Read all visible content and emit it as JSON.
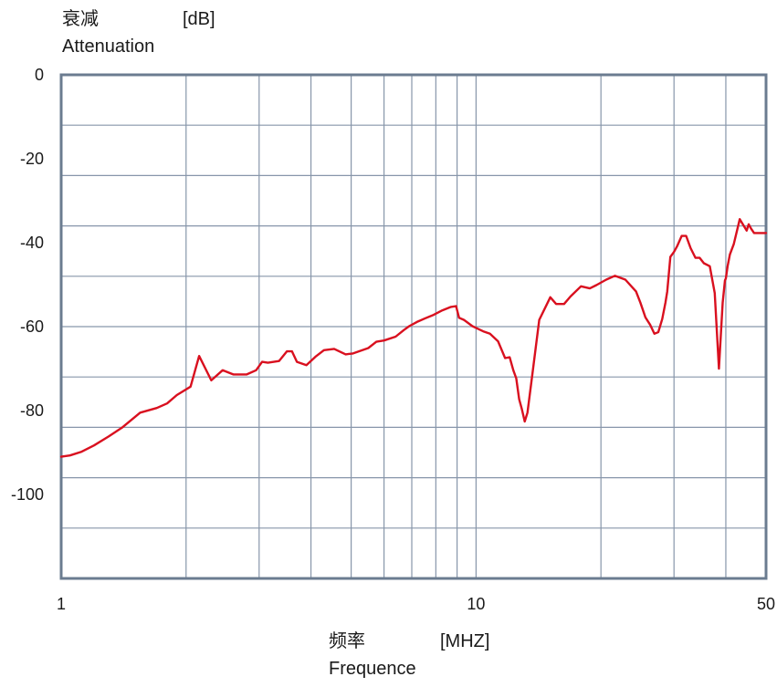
{
  "chart_data": {
    "type": "line",
    "title": "",
    "ylabel_cn": "衰减",
    "ylabel_unit": "[dB]",
    "ylabel": "Attenuation",
    "xlabel_cn": "频率",
    "xlabel_unit": "[MHZ]",
    "xlabel": "Frequence",
    "x_scale": "log",
    "xlim": [
      1,
      50
    ],
    "ylim": [
      -120,
      0
    ],
    "x_ticks": [
      1,
      10,
      50
    ],
    "x_tick_labels": [
      "1",
      "10",
      "50"
    ],
    "y_ticks": [
      0,
      -20,
      -40,
      -60,
      -80,
      -100
    ],
    "y_tick_labels": [
      "0",
      "-20",
      "-40",
      "-60",
      "-80",
      "-100"
    ],
    "grid": true,
    "x_grid": [
      2,
      3,
      4,
      5,
      6,
      7,
      8,
      9,
      10,
      20,
      30,
      40
    ],
    "y_grid": [
      -12,
      -24,
      -36,
      -48,
      -60,
      -72,
      -84,
      -96,
      -108
    ],
    "colors": {
      "line": "#d9101f",
      "axis": "#6b7c90",
      "grid": "#8796aa"
    },
    "series": [
      {
        "x": [
          1.0,
          1.05,
          1.12,
          1.2,
          1.3,
          1.4,
          1.55,
          1.7,
          1.8,
          1.9,
          2.05,
          2.15,
          2.3,
          2.45,
          2.6,
          2.8,
          2.95,
          3.05,
          3.15,
          3.35,
          3.5,
          3.6,
          3.7,
          3.9,
          4.1,
          4.3,
          4.55,
          4.85,
          5.05,
          5.5,
          5.75,
          6.0,
          6.4,
          6.7,
          6.9,
          7.2,
          7.55,
          7.9,
          8.3,
          8.7,
          8.95,
          9.1,
          9.35,
          9.8,
          10.0,
          10.4,
          10.8,
          11.3,
          11.75,
          12.05,
          12.3,
          12.5,
          12.7,
          12.9,
          13.1,
          13.3,
          13.7,
          14.2,
          15.1,
          15.6,
          16.3,
          16.9,
          17.9,
          18.8,
          19.5,
          20.6,
          21.6,
          22.9,
          24.3,
          24.9,
          25.6,
          26.3,
          26.9,
          27.5,
          28.1,
          28.6,
          28.9,
          29.4,
          30.0,
          30.5,
          31.3,
          32.1,
          32.9,
          33.8,
          34.6,
          35.4,
          36.6,
          37.6,
          38.5,
          39.3,
          39.8,
          40.0,
          40.4,
          40.9,
          41.8,
          43.2,
          44.9,
          45.4,
          46.0,
          46.8,
          48.0,
          50.0
        ],
        "y": [
          -91,
          -90.7,
          -89.8,
          -88.3,
          -86.2,
          -84.1,
          -80.5,
          -79.4,
          -78.3,
          -76.3,
          -74.3,
          -67,
          -72.8,
          -70.4,
          -71.4,
          -71.4,
          -70.4,
          -68.4,
          -68.6,
          -68.2,
          -65.9,
          -65.9,
          -68.4,
          -69.2,
          -67.2,
          -65.6,
          -65.3,
          -66.6,
          -66.4,
          -65.1,
          -63.6,
          -63.3,
          -62.4,
          -60.8,
          -59.9,
          -58.9,
          -58,
          -57.2,
          -56.1,
          -55.3,
          -55.1,
          -57.9,
          -58.4,
          -59.9,
          -60.3,
          -61.1,
          -61.7,
          -63.5,
          -67.5,
          -67.3,
          -70.4,
          -72.3,
          -77.3,
          -79.7,
          -82.6,
          -80.5,
          -70.6,
          -58.4,
          -53,
          -54.6,
          -54.6,
          -52.8,
          -50.4,
          -50.9,
          -50.1,
          -48.8,
          -47.9,
          -48.8,
          -51.6,
          -54.3,
          -57.8,
          -59.6,
          -61.7,
          -61.3,
          -58.2,
          -54.3,
          -51.6,
          -43.4,
          -42.2,
          -40.9,
          -38.4,
          -38.4,
          -41.3,
          -43.6,
          -43.6,
          -44.9,
          -45.6,
          -52,
          -70,
          -54.3,
          -49,
          -48.5,
          -45.6,
          -42.8,
          -40.3,
          -34.4,
          -37.1,
          -35.6,
          -36.6,
          -37.7,
          -37.7,
          -37.7
        ]
      }
    ]
  }
}
